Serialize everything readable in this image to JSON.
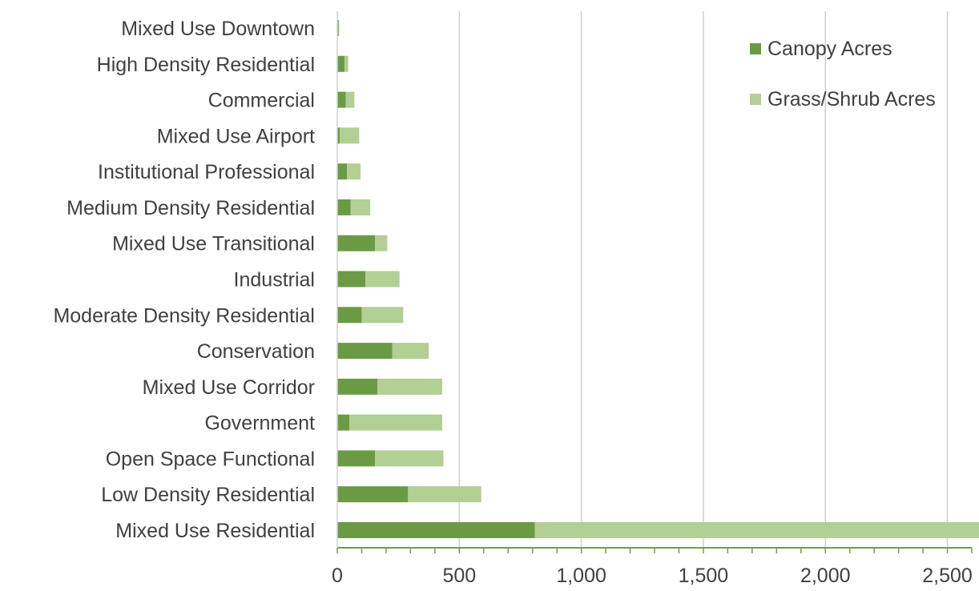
{
  "chart_data": {
    "type": "bar",
    "orientation": "horizontal",
    "stacked": true,
    "title": "",
    "xlabel": "",
    "ylabel": "",
    "categories": [
      "Mixed Use Downtown",
      "High Density Residential",
      "Commercial",
      "Mixed Use Airport",
      "Institutional Professional",
      "Medium Density Residential",
      "Mixed Use Transitional",
      "Industrial",
      "Moderate Density Residential",
      "Conservation",
      "Mixed Use Corridor",
      "Government",
      "Open Space Functional",
      "Low Density Residential",
      "Mixed Use Residential"
    ],
    "series": [
      {
        "name": "Canopy Acres",
        "color": "#6b9a45",
        "values": [
          5,
          30,
          35,
          10,
          40,
          55,
          155,
          115,
          100,
          225,
          165,
          50,
          155,
          290,
          810
        ]
      },
      {
        "name": "Grass/Shrub Acres",
        "color": "#b2cf94",
        "values": [
          3,
          15,
          35,
          80,
          55,
          80,
          50,
          140,
          170,
          150,
          265,
          380,
          280,
          300,
          1820
        ]
      }
    ],
    "xlim": [
      0,
      2600
    ],
    "xticks": [
      0,
      500,
      1000,
      1500,
      2000,
      2500
    ],
    "xtick_labels": [
      "0",
      "500",
      "1,000",
      "1,500",
      "2,000",
      "2,500"
    ],
    "grid": "vertical",
    "legend_position": "top-right"
  }
}
